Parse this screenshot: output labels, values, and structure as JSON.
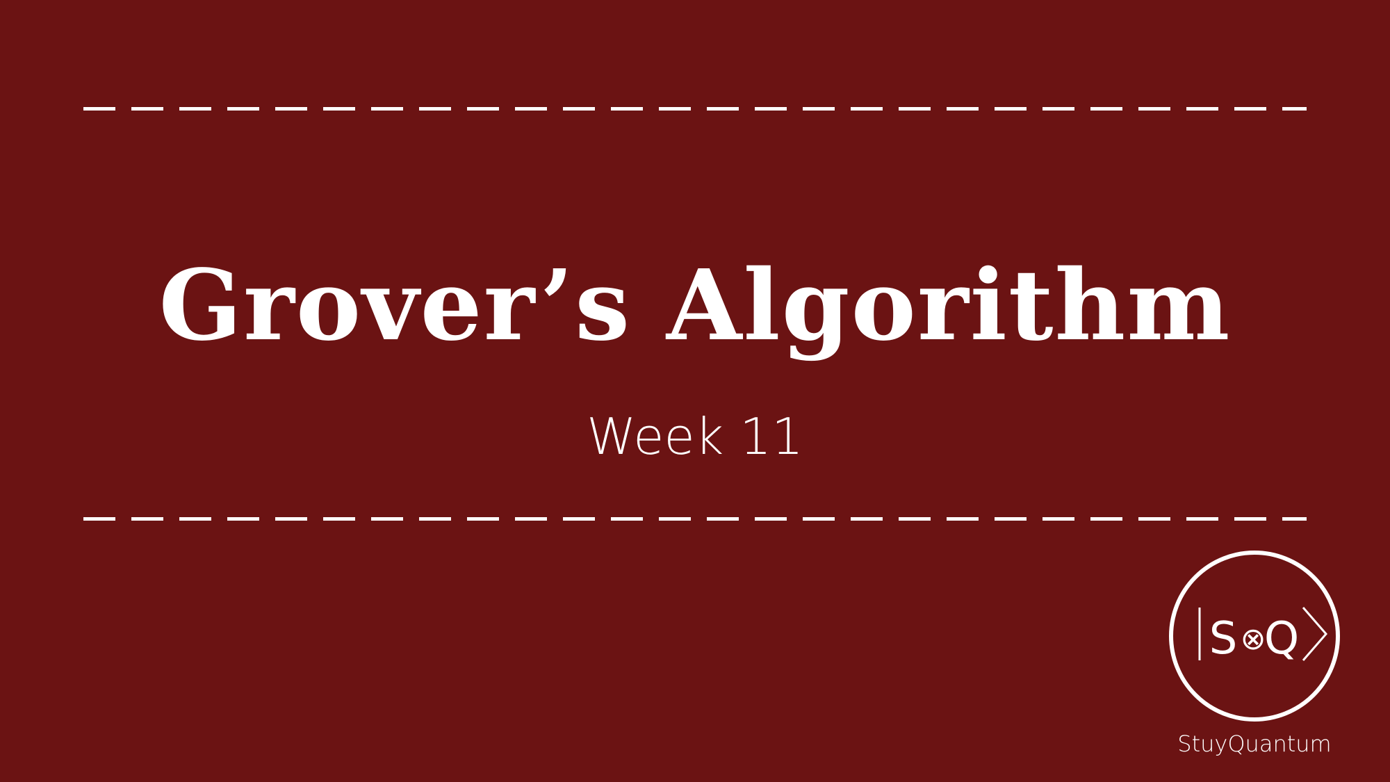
{
  "slide": {
    "title": "Grover’s Algorithm",
    "subtitle": "Week 11",
    "background_color": "#6b1313",
    "text_color": "#ffffff"
  },
  "logo": {
    "text_left": "S",
    "symbol": "⊗",
    "text_right": "Q",
    "icon": "ket-logo-icon",
    "brand_name": "StuyQuantum"
  }
}
